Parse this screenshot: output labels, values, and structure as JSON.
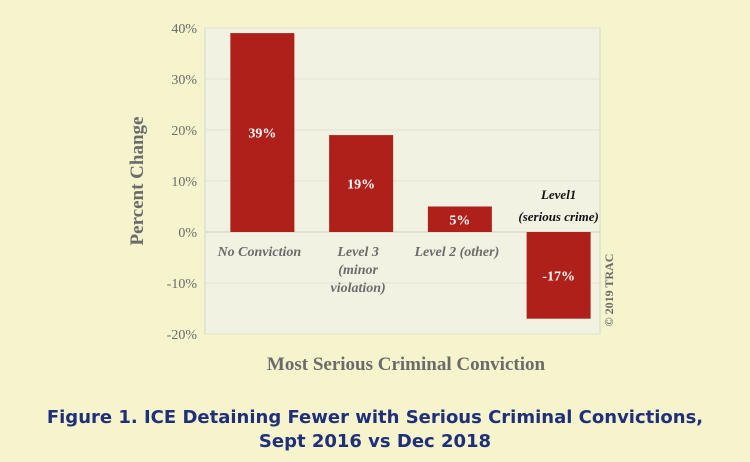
{
  "chart_data": {
    "type": "bar",
    "categories": [
      [
        "No Conviction"
      ],
      [
        "Level 3",
        "(minor",
        "violation)"
      ],
      [
        "Level 2 (other)"
      ],
      [
        "Level1",
        "(serious crime)"
      ]
    ],
    "values": [
      39,
      19,
      5,
      -17
    ],
    "value_labels": [
      "39%",
      "19%",
      "5%",
      "-17%"
    ],
    "ylim": [
      -20,
      40
    ],
    "yticks": [
      40,
      30,
      20,
      10,
      0,
      -10,
      -20
    ],
    "ytick_labels": [
      "40%",
      "30%",
      "20%",
      "10%",
      "0%",
      "-10%",
      "-20%"
    ],
    "ylabel": "Percent Change",
    "xlabel": "Most Serious Criminal Conviction",
    "credit": "© 2019 TRAC",
    "colors": {
      "bar": "#b0201a",
      "plot_bg": "#f2f2e2",
      "grid": "#e3e3d3",
      "page_bg": "#f5f4cc"
    }
  },
  "caption": {
    "line1": "Figure 1. ICE Detaining Fewer with Serious Criminal Convictions,",
    "line2": "Sept 2016 vs Dec 2018"
  }
}
